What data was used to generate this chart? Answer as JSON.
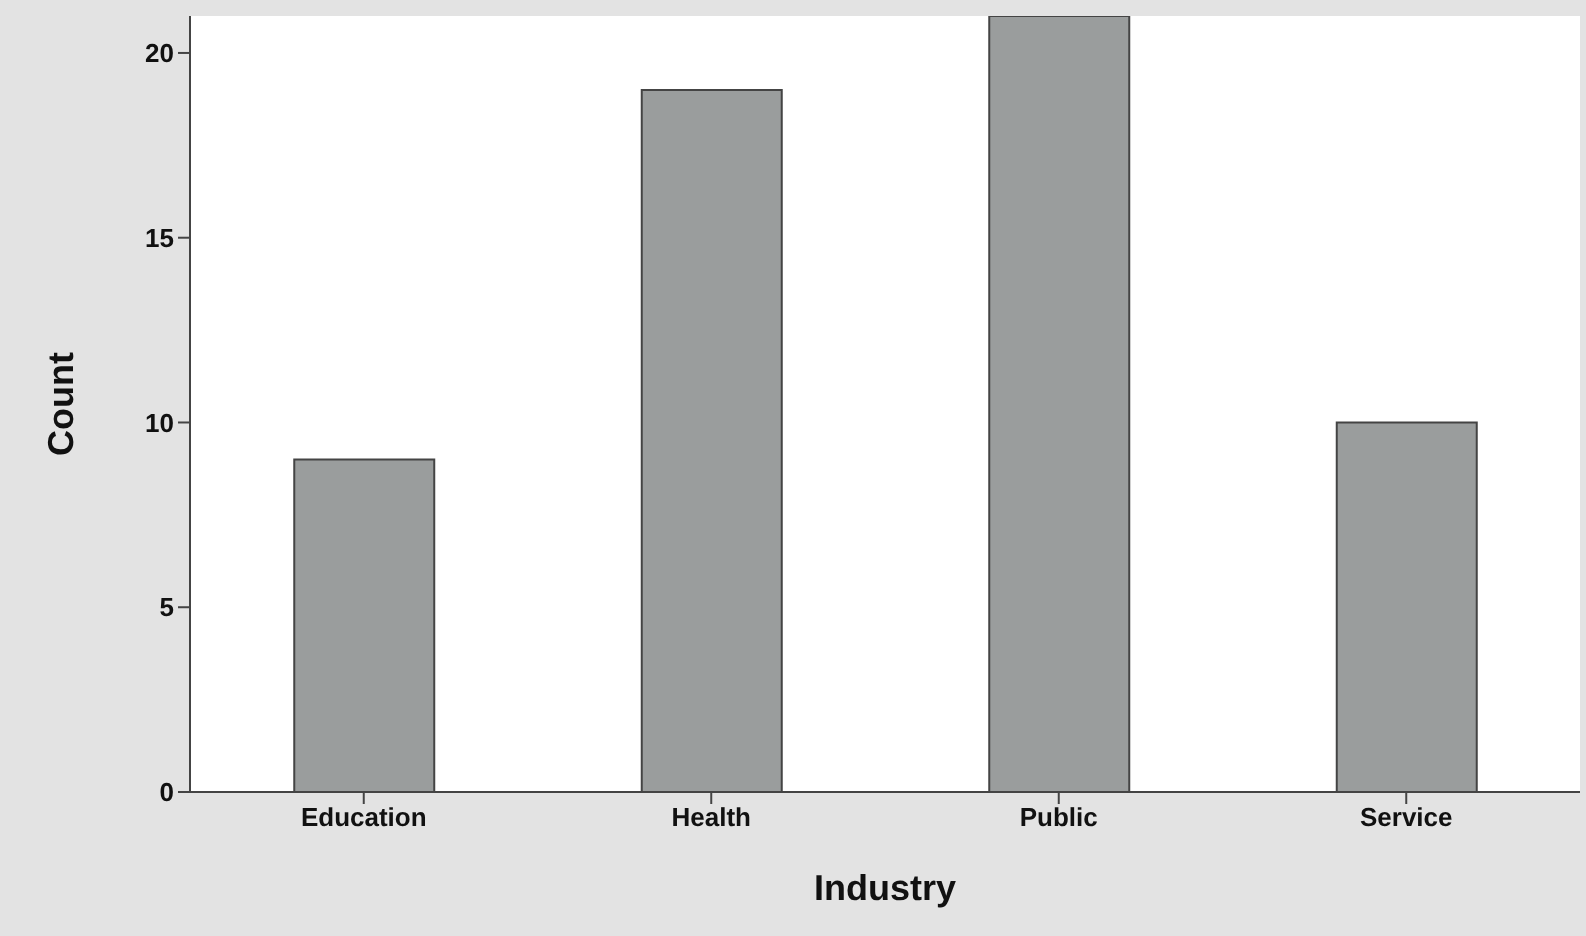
{
  "chart_data": {
    "type": "bar",
    "xlabel": "Industry",
    "ylabel": "Count",
    "categories": [
      "Education",
      "Health",
      "Public",
      "Service"
    ],
    "values": [
      9,
      19,
      21,
      10
    ],
    "color": "#9a9d9d",
    "ylim": [
      0,
      21
    ],
    "yticks": [
      0,
      5,
      10,
      15,
      20
    ],
    "grid": false
  }
}
